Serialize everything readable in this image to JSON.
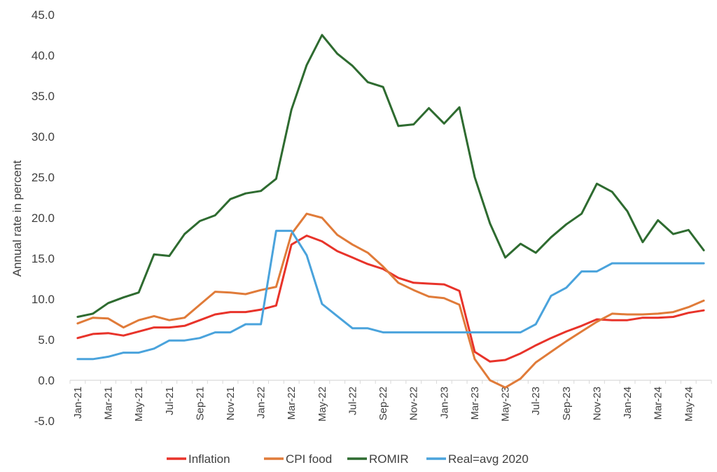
{
  "chart_data": {
    "type": "line",
    "title": "",
    "xlabel": "",
    "ylabel": "Annual rate in percent",
    "ylim": [
      -5,
      45
    ],
    "yticks": [
      "45.0",
      "40.0",
      "35.0",
      "30.0",
      "25.0",
      "20.0",
      "15.0",
      "10.0",
      "5.0",
      "0.0",
      "-5.0"
    ],
    "grid": false,
    "legend_position": "bottom",
    "x": [
      "Jan-21",
      "Feb-21",
      "Mar-21",
      "Apr-21",
      "May-21",
      "Jun-21",
      "Jul-21",
      "Aug-21",
      "Sep-21",
      "Oct-21",
      "Nov-21",
      "Dec-21",
      "Jan-22",
      "Feb-22",
      "Mar-22",
      "Apr-22",
      "May-22",
      "Jun-22",
      "Jul-22",
      "Aug-22",
      "Sep-22",
      "Oct-22",
      "Nov-22",
      "Dec-22",
      "Jan-23",
      "Feb-23",
      "Mar-23",
      "Apr-23",
      "May-23",
      "Jun-23",
      "Jul-23",
      "Aug-23",
      "Sep-23",
      "Oct-23",
      "Nov-23",
      "Dec-23",
      "Jan-24",
      "Feb-24",
      "Mar-24",
      "Apr-24",
      "May-24",
      "Jun-24"
    ],
    "x_tick_labels": [
      "Jan-21",
      "Mar-21",
      "May-21",
      "Jul-21",
      "Sep-21",
      "Nov-21",
      "Jan-22",
      "Mar-22",
      "May-22",
      "Jul-22",
      "Sep-22",
      "Nov-22",
      "Jan-23",
      "Mar-23",
      "May-23",
      "Jul-23",
      "Sep-23",
      "Nov-23",
      "Jan-24",
      "Mar-24",
      "May-24"
    ],
    "series": [
      {
        "name": "Inflation",
        "color": "#e8332a",
        "values": [
          5.2,
          5.7,
          5.8,
          5.5,
          6.0,
          6.5,
          6.5,
          6.7,
          7.4,
          8.1,
          8.4,
          8.4,
          8.7,
          9.2,
          16.7,
          17.8,
          17.1,
          15.9,
          15.1,
          14.3,
          13.7,
          12.6,
          12.0,
          11.9,
          11.8,
          11.0,
          3.5,
          2.3,
          2.5,
          3.3,
          4.3,
          5.2,
          6.0,
          6.7,
          7.5,
          7.4,
          7.4,
          7.7,
          7.7,
          7.8,
          8.3,
          8.6
        ]
      },
      {
        "name": "CPI food",
        "color": "#e07b39",
        "values": [
          7.0,
          7.7,
          7.6,
          6.5,
          7.4,
          7.9,
          7.4,
          7.7,
          9.3,
          10.9,
          10.8,
          10.6,
          11.1,
          11.5,
          18.0,
          20.5,
          20.0,
          17.9,
          16.7,
          15.7,
          14.0,
          12.0,
          11.1,
          10.3,
          10.1,
          9.3,
          2.6,
          0.0,
          -0.9,
          0.2,
          2.2,
          3.5,
          4.8,
          6.0,
          7.2,
          8.2,
          8.1,
          8.1,
          8.2,
          8.4,
          9.0,
          9.8
        ]
      },
      {
        "name": "ROMIR",
        "color": "#2e6b30",
        "values": [
          7.8,
          8.2,
          9.5,
          10.2,
          10.8,
          15.5,
          15.3,
          18.0,
          19.6,
          20.3,
          22.3,
          23.0,
          23.3,
          24.8,
          33.3,
          38.8,
          42.5,
          40.2,
          38.7,
          36.7,
          36.1,
          31.3,
          31.5,
          33.5,
          31.6,
          33.6,
          25.0,
          19.3,
          15.1,
          16.8,
          15.7,
          17.6,
          19.2,
          20.5,
          24.2,
          23.2,
          20.8,
          17.0,
          19.7,
          18.0,
          18.5,
          16.0
        ]
      },
      {
        "name": "Real=avg 2020",
        "color": "#4aa3dc",
        "values": [
          2.6,
          2.6,
          2.9,
          3.4,
          3.4,
          3.9,
          4.9,
          4.9,
          5.2,
          5.9,
          5.9,
          6.9,
          6.9,
          18.4,
          18.4,
          15.4,
          9.4,
          7.9,
          6.4,
          6.4,
          5.9,
          5.9,
          5.9,
          5.9,
          5.9,
          5.9,
          5.9,
          5.9,
          5.9,
          5.9,
          6.9,
          10.4,
          11.4,
          13.4,
          13.4,
          14.4,
          14.4,
          14.4,
          14.4,
          14.4,
          14.4,
          14.4
        ]
      }
    ]
  }
}
